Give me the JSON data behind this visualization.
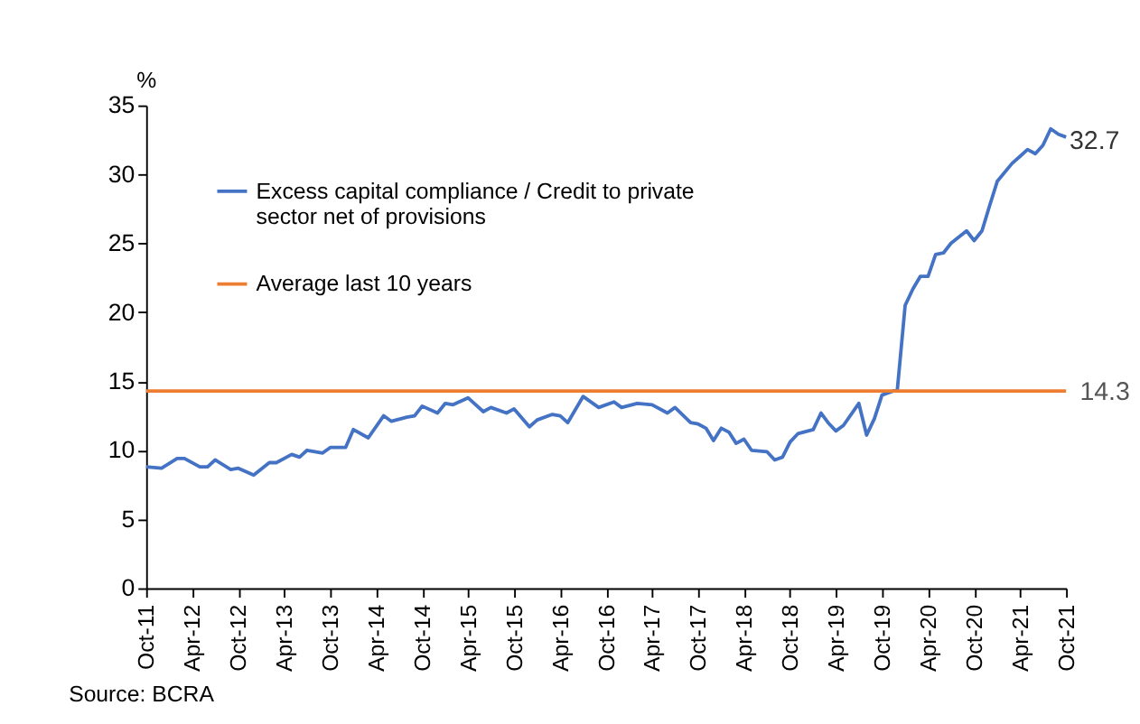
{
  "chart_data": {
    "type": "line",
    "ylabel": "%",
    "ylim": [
      0,
      35
    ],
    "yticks": [
      0,
      5,
      10,
      15,
      20,
      25,
      30,
      35
    ],
    "xlim": [
      "2011-10",
      "2021-10"
    ],
    "xticks": [
      {
        "value": "2011-10",
        "label": "Oct-11"
      },
      {
        "value": "2012-04",
        "label": "Apr-12"
      },
      {
        "value": "2012-10",
        "label": "Oct-12"
      },
      {
        "value": "2013-04",
        "label": "Apr-13"
      },
      {
        "value": "2013-10",
        "label": "Oct-13"
      },
      {
        "value": "2014-04",
        "label": "Apr-14"
      },
      {
        "value": "2014-10",
        "label": "Oct-14"
      },
      {
        "value": "2015-04",
        "label": "Apr-15"
      },
      {
        "value": "2015-10",
        "label": "Oct-15"
      },
      {
        "value": "2016-04",
        "label": "Apr-16"
      },
      {
        "value": "2016-10",
        "label": "Oct-16"
      },
      {
        "value": "2017-04",
        "label": "Apr-17"
      },
      {
        "value": "2017-10",
        "label": "Oct-17"
      },
      {
        "value": "2018-04",
        "label": "Apr-18"
      },
      {
        "value": "2018-10",
        "label": "Oct-18"
      },
      {
        "value": "2019-04",
        "label": "Apr-19"
      },
      {
        "value": "2019-10",
        "label": "Oct-19"
      },
      {
        "value": "2020-04",
        "label": "Apr-20"
      },
      {
        "value": "2020-10",
        "label": "Oct-20"
      },
      {
        "value": "2021-04",
        "label": "Apr-21"
      },
      {
        "value": "2021-10",
        "label": "Oct-21"
      }
    ],
    "x": [
      "2011-10",
      "2011-12",
      "2012-02",
      "2012-03",
      "2012-05",
      "2012-06",
      "2012-07",
      "2012-09",
      "2012-10",
      "2012-12",
      "2013-02",
      "2013-03",
      "2013-05",
      "2013-06",
      "2013-07",
      "2013-09",
      "2013-10",
      "2013-12",
      "2014-01",
      "2014-03",
      "2014-05",
      "2014-06",
      "2014-08",
      "2014-09",
      "2014-10",
      "2014-12",
      "2015-01",
      "2015-02",
      "2015-04",
      "2015-06",
      "2015-07",
      "2015-09",
      "2015-10",
      "2015-12",
      "2016-01",
      "2016-03",
      "2016-04",
      "2016-05",
      "2016-07",
      "2016-09",
      "2016-11",
      "2016-12",
      "2017-02",
      "2017-04",
      "2017-06",
      "2017-07",
      "2017-09",
      "2017-10",
      "2017-11",
      "2017-12",
      "2018-01",
      "2018-02",
      "2018-03",
      "2018-04",
      "2018-05",
      "2018-07",
      "2018-08",
      "2018-09",
      "2018-10",
      "2018-11",
      "2019-01",
      "2019-02",
      "2019-03",
      "2019-04",
      "2019-05",
      "2019-07",
      "2019-08",
      "2019-09",
      "2019-10",
      "2019-12",
      "2020-01",
      "2020-02",
      "2020-03",
      "2020-04",
      "2020-05",
      "2020-06",
      "2020-07",
      "2020-09",
      "2020-10",
      "2020-11",
      "2020-12",
      "2021-01",
      "2021-03",
      "2021-04",
      "2021-05",
      "2021-06",
      "2021-07",
      "2021-08",
      "2021-09",
      "2021-10"
    ],
    "series": [
      {
        "name": "Excess capital compliance / Credit to private sector net of provisions",
        "color": "#4472c4",
        "values": [
          8.8,
          8.7,
          9.4,
          9.4,
          8.8,
          8.8,
          9.3,
          8.6,
          8.7,
          8.2,
          9.1,
          9.1,
          9.7,
          9.5,
          10.0,
          9.8,
          10.2,
          10.2,
          11.5,
          10.9,
          12.5,
          12.1,
          12.4,
          12.5,
          13.2,
          12.7,
          13.4,
          13.3,
          13.8,
          12.8,
          13.1,
          12.7,
          13.0,
          11.7,
          12.2,
          12.6,
          12.5,
          12.0,
          13.9,
          13.1,
          13.5,
          13.1,
          13.4,
          13.3,
          12.7,
          13.1,
          12.0,
          11.9,
          11.6,
          10.7,
          11.6,
          11.3,
          10.5,
          10.8,
          10.0,
          9.9,
          9.3,
          9.5,
          10.6,
          11.2,
          11.5,
          12.7,
          12.0,
          11.4,
          11.8,
          13.4,
          11.1,
          12.3,
          14.0,
          14.4,
          20.5,
          21.7,
          22.6,
          22.6,
          24.2,
          24.3,
          25.0,
          25.9,
          25.2,
          25.9,
          27.7,
          29.5,
          30.8,
          31.3,
          31.8,
          31.5,
          32.1,
          33.3,
          32.9,
          32.7
        ],
        "value_labels": [
          null,
          null,
          null,
          null,
          null,
          null,
          null,
          null,
          null,
          null,
          null,
          null,
          null,
          null,
          null,
          null,
          null,
          null,
          null,
          null,
          null,
          null,
          null,
          null,
          null,
          null,
          null,
          null,
          null,
          null,
          null,
          null,
          null,
          null,
          null,
          null,
          null,
          null,
          null,
          null,
          null,
          null,
          null,
          null,
          null,
          null,
          null,
          null,
          null,
          null,
          null,
          null,
          null,
          null,
          null,
          null,
          null,
          null,
          null,
          null,
          null,
          null,
          null,
          null,
          null,
          null,
          null,
          null,
          null,
          null,
          null,
          null,
          null,
          null,
          null,
          null,
          null,
          null,
          null,
          null,
          null,
          null,
          null,
          null,
          null,
          null,
          null,
          null,
          null,
          "32.7"
        ]
      }
    ],
    "ref_lines": [
      {
        "axis": "y",
        "value": 14.3,
        "label": "Average last 10 years",
        "color": "#ed7d31"
      }
    ],
    "legend": "top left",
    "annotations": [
      "Source: BCRA",
      {
        "text": "14.3",
        "x": "2021-10",
        "y": 14.3
      }
    ]
  }
}
